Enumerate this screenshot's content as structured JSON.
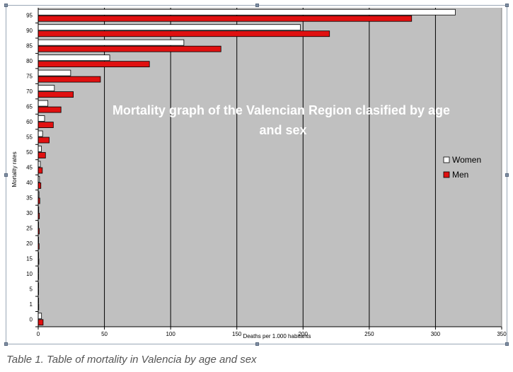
{
  "caption": "Table 1. Table of mortality in Valencia by age and sex",
  "colors": {
    "plot_background": "#c0c0c0",
    "women": "#ffffff",
    "men": "#e01010",
    "title_text": "#ffffff"
  },
  "chart_data": {
    "type": "bar",
    "orientation": "horizontal",
    "title": "Mortality graph of the Valencian Region clasified by age and sex",
    "xlabel": "Deaths per 1.000 habitants",
    "ylabel": "Mortality rates",
    "xlim": [
      0,
      350
    ],
    "x_ticks": [
      0,
      50,
      100,
      150,
      200,
      250,
      300,
      350
    ],
    "grid": "vertical",
    "legend_position": "right",
    "categories": [
      "0",
      "1",
      "5",
      "10",
      "15",
      "20",
      "25",
      "30",
      "35",
      "40",
      "45",
      "50",
      "55",
      "60",
      "65",
      "70",
      "75",
      "80",
      "85",
      "90",
      "95"
    ],
    "series": [
      {
        "name": "Women",
        "values": [
          2.5,
          0.3,
          0.1,
          0.1,
          0.2,
          0.2,
          0.3,
          0.4,
          0.6,
          1.0,
          1.6,
          2.4,
          3.3,
          4.8,
          7.3,
          12.2,
          24.5,
          54.0,
          110.0,
          198.0,
          315.0
        ]
      },
      {
        "name": "Men",
        "values": [
          3.7,
          0.4,
          0.2,
          0.2,
          0.5,
          0.7,
          0.8,
          0.9,
          1.2,
          2.0,
          3.1,
          5.5,
          8.3,
          11.4,
          17.2,
          26.5,
          47.0,
          84.0,
          138.0,
          220.0,
          282.0
        ]
      }
    ]
  }
}
